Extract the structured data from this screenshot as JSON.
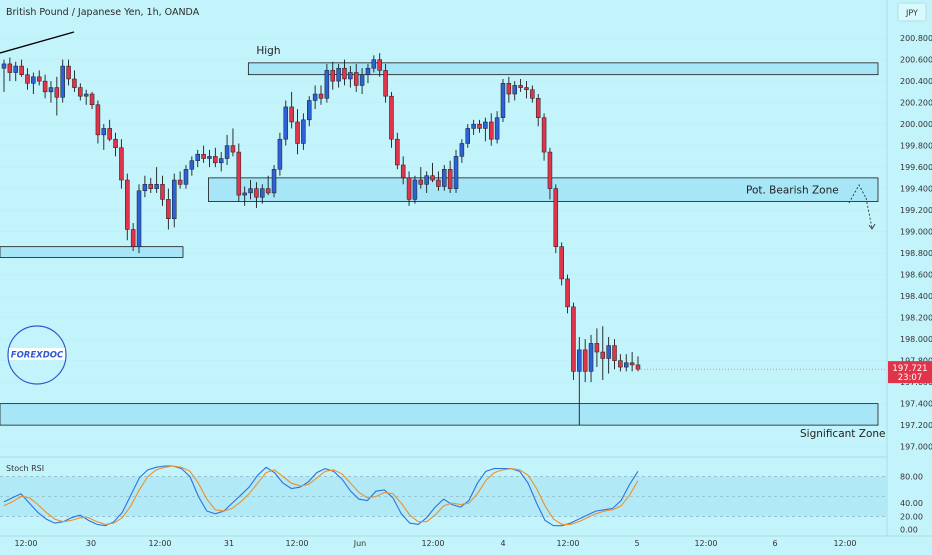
{
  "header": {
    "title": "British Pound / Japanese Yen, 1h, OANDA",
    "currency_button": "JPY"
  },
  "logo": {
    "text": "FOREXDOC"
  },
  "colors": {
    "background": "#c4f4fb",
    "up_candle": "#2d62d6",
    "down_candle": "#e0344a",
    "zone_fill": "#a6e6f7",
    "stoch_k": "#2d73e0",
    "stoch_d": "#f0902a",
    "price_tag": "#e0344a"
  },
  "chart_data": [
    {
      "type": "candlestick",
      "title": "British Pound / Japanese Yen, 1h, OANDA",
      "ylim": [
        196.95,
        200.95
      ],
      "price_ticks": [
        "200.800",
        "200.600",
        "200.400",
        "200.200",
        "200.000",
        "199.800",
        "199.600",
        "199.400",
        "199.200",
        "199.000",
        "198.800",
        "198.600",
        "198.400",
        "198.200",
        "198.000",
        "197.800",
        "197.600",
        "197.400",
        "197.200",
        "197.000"
      ],
      "time_ticks": [
        "12:00",
        "30",
        "12:00",
        "31",
        "12:00",
        "Jun",
        "12:00",
        "4",
        "12:00",
        "5",
        "12:00",
        "6",
        "12:00"
      ],
      "last_price": {
        "value": 197.721,
        "label": "197.721",
        "countdown": "23:07"
      },
      "candles": [
        [
          200.52,
          200.6,
          200.3,
          200.56
        ],
        [
          200.56,
          200.62,
          200.4,
          200.48
        ],
        [
          200.48,
          200.58,
          200.4,
          200.54
        ],
        [
          200.54,
          200.6,
          200.44,
          200.46
        ],
        [
          200.46,
          200.52,
          200.32,
          200.38
        ],
        [
          200.38,
          200.48,
          200.28,
          200.44
        ],
        [
          200.44,
          200.5,
          200.36,
          200.4
        ],
        [
          200.4,
          200.46,
          200.24,
          200.3
        ],
        [
          200.3,
          200.4,
          200.2,
          200.34
        ],
        [
          200.34,
          200.44,
          200.08,
          200.25
        ],
        [
          200.25,
          200.6,
          200.2,
          200.54
        ],
        [
          200.54,
          200.6,
          200.36,
          200.42
        ],
        [
          200.42,
          200.5,
          200.3,
          200.34
        ],
        [
          200.34,
          200.38,
          200.22,
          200.26
        ],
        [
          200.26,
          200.32,
          200.18,
          200.28
        ],
        [
          200.28,
          200.3,
          200.14,
          200.18
        ],
        [
          200.18,
          200.22,
          199.82,
          199.9
        ],
        [
          199.9,
          200.0,
          199.76,
          199.96
        ],
        [
          199.96,
          200.04,
          199.84,
          199.86
        ],
        [
          199.86,
          199.92,
          199.7,
          199.78
        ],
        [
          199.78,
          199.86,
          199.4,
          199.48
        ],
        [
          199.48,
          199.54,
          198.92,
          199.02
        ],
        [
          199.02,
          199.08,
          198.82,
          198.86
        ],
        [
          198.86,
          199.44,
          198.8,
          199.38
        ],
        [
          199.38,
          199.52,
          199.32,
          199.44
        ],
        [
          199.44,
          199.5,
          199.36,
          199.4
        ],
        [
          199.4,
          199.6,
          199.36,
          199.44
        ],
        [
          199.44,
          199.52,
          199.24,
          199.3
        ],
        [
          199.3,
          199.4,
          199.02,
          199.12
        ],
        [
          199.12,
          199.54,
          199.04,
          199.48
        ],
        [
          199.48,
          199.56,
          199.4,
          199.44
        ],
        [
          199.44,
          199.62,
          199.4,
          199.58
        ],
        [
          199.58,
          199.7,
          199.52,
          199.66
        ],
        [
          199.66,
          199.76,
          199.6,
          199.72
        ],
        [
          199.72,
          199.8,
          199.64,
          199.68
        ],
        [
          199.68,
          199.76,
          199.6,
          199.7
        ],
        [
          199.7,
          199.78,
          199.6,
          199.64
        ],
        [
          199.64,
          199.74,
          199.56,
          199.68
        ],
        [
          199.68,
          199.9,
          199.62,
          199.8
        ],
        [
          199.8,
          199.96,
          199.7,
          199.74
        ],
        [
          199.74,
          199.82,
          199.28,
          199.34
        ],
        [
          199.34,
          199.42,
          199.24,
          199.36
        ],
        [
          199.36,
          199.48,
          199.3,
          199.4
        ],
        [
          199.4,
          199.46,
          199.22,
          199.32
        ],
        [
          199.32,
          199.44,
          199.26,
          199.4
        ],
        [
          199.4,
          199.52,
          199.34,
          199.36
        ],
        [
          199.36,
          199.62,
          199.32,
          199.58
        ],
        [
          199.58,
          199.92,
          199.52,
          199.86
        ],
        [
          199.86,
          200.22,
          199.8,
          200.16
        ],
        [
          200.16,
          200.3,
          199.96,
          200.02
        ],
        [
          200.02,
          200.14,
          199.72,
          199.82
        ],
        [
          199.82,
          200.1,
          199.76,
          200.04
        ],
        [
          200.04,
          200.26,
          199.98,
          200.22
        ],
        [
          200.22,
          200.36,
          200.14,
          200.28
        ],
        [
          200.28,
          200.36,
          200.18,
          200.24
        ],
        [
          200.24,
          200.56,
          200.2,
          200.5
        ],
        [
          200.5,
          200.58,
          200.32,
          200.4
        ],
        [
          200.4,
          200.56,
          200.34,
          200.52
        ],
        [
          200.52,
          200.6,
          200.36,
          200.42
        ],
        [
          200.42,
          200.54,
          200.34,
          200.48
        ],
        [
          200.48,
          200.56,
          200.3,
          200.36
        ],
        [
          200.36,
          200.52,
          200.28,
          200.46
        ],
        [
          200.46,
          200.56,
          200.38,
          200.52
        ],
        [
          200.52,
          200.64,
          200.48,
          200.6
        ],
        [
          200.6,
          200.66,
          200.44,
          200.5
        ],
        [
          200.5,
          200.56,
          200.2,
          200.26
        ],
        [
          200.26,
          200.3,
          199.78,
          199.86
        ],
        [
          199.86,
          199.92,
          199.58,
          199.62
        ],
        [
          199.62,
          199.7,
          199.44,
          199.5
        ],
        [
          199.5,
          199.56,
          199.24,
          199.3
        ],
        [
          199.3,
          199.52,
          199.26,
          199.48
        ],
        [
          199.48,
          199.6,
          199.4,
          199.44
        ],
        [
          199.44,
          199.56,
          199.36,
          199.52
        ],
        [
          199.52,
          199.64,
          199.46,
          199.48
        ],
        [
          199.48,
          199.56,
          199.38,
          199.42
        ],
        [
          199.42,
          199.62,
          199.38,
          199.58
        ],
        [
          199.58,
          199.66,
          199.36,
          199.4
        ],
        [
          199.4,
          199.76,
          199.36,
          199.7
        ],
        [
          199.7,
          199.86,
          199.64,
          199.82
        ],
        [
          199.82,
          200.0,
          199.78,
          199.96
        ],
        [
          199.96,
          200.04,
          199.9,
          200.0
        ],
        [
          200.0,
          200.04,
          199.92,
          199.96
        ],
        [
          199.96,
          200.06,
          199.84,
          200.02
        ],
        [
          200.02,
          200.1,
          199.8,
          199.86
        ],
        [
          199.86,
          200.12,
          199.82,
          200.06
        ],
        [
          200.06,
          200.42,
          200.02,
          200.38
        ],
        [
          200.38,
          200.44,
          200.2,
          200.28
        ],
        [
          200.28,
          200.4,
          200.22,
          200.36
        ],
        [
          200.36,
          200.42,
          200.3,
          200.34
        ],
        [
          200.34,
          200.4,
          200.24,
          200.32
        ],
        [
          200.32,
          200.36,
          200.2,
          200.24
        ],
        [
          200.24,
          200.28,
          199.98,
          200.06
        ],
        [
          200.06,
          200.1,
          199.66,
          199.74
        ],
        [
          199.74,
          199.78,
          199.3,
          199.4
        ],
        [
          199.4,
          199.44,
          198.8,
          198.86
        ],
        [
          198.86,
          198.9,
          198.5,
          198.56
        ],
        [
          198.56,
          198.6,
          198.24,
          198.3
        ],
        [
          198.3,
          198.34,
          197.62,
          197.7
        ],
        [
          197.7,
          198.02,
          197.2,
          197.9
        ],
        [
          197.9,
          198.0,
          197.6,
          197.7
        ],
        [
          197.7,
          198.04,
          197.6,
          197.96
        ],
        [
          197.96,
          198.1,
          197.74,
          197.88
        ],
        [
          197.88,
          198.12,
          197.62,
          197.82
        ],
        [
          197.82,
          198.02,
          197.68,
          197.94
        ],
        [
          197.94,
          198.0,
          197.72,
          197.8
        ],
        [
          197.8,
          197.86,
          197.7,
          197.74
        ],
        [
          197.74,
          197.86,
          197.7,
          197.78
        ],
        [
          197.78,
          197.88,
          197.7,
          197.76
        ],
        [
          197.76,
          197.84,
          197.7,
          197.72
        ]
      ],
      "zones": [
        {
          "name": "High",
          "label": "High",
          "top": 200.57,
          "bottom": 200.46,
          "x_start": 0.28
        },
        {
          "name": "Pot. Bearish Zone",
          "label": "Pot. Bearish Zone",
          "top": 199.5,
          "bottom": 199.28,
          "x_start": 0.235
        },
        {
          "name": "Significant Zone",
          "label": "Significant Zone",
          "top": 197.4,
          "bottom": 197.2,
          "x_start": 0.0
        },
        {
          "name": "left-support-zone",
          "label": "",
          "top": 198.86,
          "bottom": 198.76,
          "x_start": 0.0
        }
      ]
    },
    {
      "type": "line",
      "title": "Stoch RSI",
      "ylim": [
        -8,
        108
      ],
      "y_ticks": [
        "80.00",
        "40.00",
        "20.00",
        "0.00"
      ],
      "series": [
        {
          "name": "K",
          "values": [
            42,
            48,
            54,
            40,
            26,
            16,
            10,
            12,
            18,
            22,
            14,
            8,
            6,
            12,
            26,
            52,
            78,
            90,
            94,
            96,
            96,
            92,
            80,
            50,
            28,
            24,
            28,
            40,
            52,
            64,
            82,
            94,
            86,
            70,
            62,
            64,
            72,
            86,
            92,
            88,
            76,
            58,
            46,
            44,
            58,
            60,
            48,
            24,
            10,
            8,
            18,
            34,
            46,
            38,
            34,
            44,
            70,
            88,
            92,
            92,
            92,
            88,
            70,
            40,
            14,
            6,
            6,
            10,
            16,
            22,
            28,
            30,
            32,
            44,
            68,
            88
          ]
        },
        {
          "name": "D",
          "values": [
            36,
            42,
            50,
            48,
            38,
            26,
            16,
            12,
            14,
            18,
            18,
            12,
            8,
            10,
            18,
            36,
            60,
            80,
            90,
            94,
            96,
            94,
            88,
            70,
            46,
            30,
            28,
            32,
            42,
            54,
            70,
            86,
            90,
            80,
            70,
            66,
            68,
            78,
            88,
            90,
            84,
            70,
            56,
            48,
            50,
            56,
            54,
            40,
            22,
            12,
            12,
            22,
            36,
            40,
            38,
            40,
            54,
            74,
            86,
            90,
            92,
            90,
            82,
            62,
            36,
            16,
            8,
            8,
            12,
            18,
            24,
            28,
            30,
            36,
            52,
            74
          ]
        }
      ]
    }
  ]
}
